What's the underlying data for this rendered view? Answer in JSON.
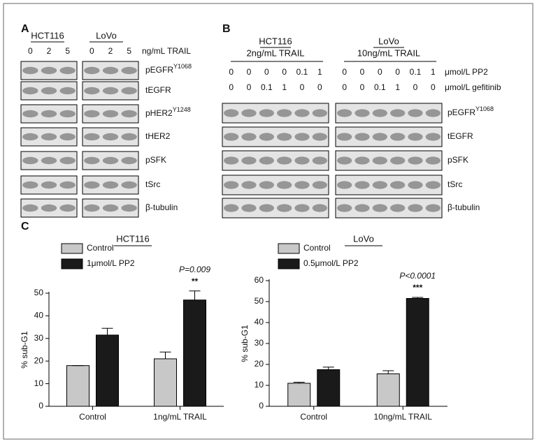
{
  "panel_a": {
    "label": "A",
    "groups": [
      "HCT116",
      "LoVo"
    ],
    "doses": [
      0,
      2,
      5
    ],
    "dose_unit": "ng/mL TRAIL",
    "blots": [
      {
        "name": "pEGFR",
        "sup": "Y1068"
      },
      {
        "name": "tEGFR"
      },
      {
        "name": "pHER2",
        "sup": "Y1248"
      },
      {
        "name": "tHER2"
      },
      {
        "name": "pSFK"
      },
      {
        "name": "tSrc"
      },
      {
        "name": "β-tubulin"
      }
    ]
  },
  "panel_b": {
    "label": "B",
    "groups": [
      {
        "name": "HCT116",
        "treatment": "2ng/mL TRAIL"
      },
      {
        "name": "LoVo",
        "treatment": "10ng/mL TRAIL"
      }
    ],
    "pp2": [
      0,
      0,
      0,
      0,
      0.1,
      1
    ],
    "pp2_unit": "μmol/L PP2",
    "gefitinib": [
      0,
      0,
      0.1,
      1,
      0,
      0
    ],
    "gefitinib_unit": "μmol/L gefitinib",
    "blots": [
      {
        "name": "pEGFR",
        "sup": "Y1068"
      },
      {
        "name": "tEGFR"
      },
      {
        "name": "pSFK"
      },
      {
        "name": "tSrc"
      },
      {
        "name": "β-tubulin"
      }
    ]
  },
  "panel_c": {
    "label": "C"
  },
  "chart_data": [
    {
      "type": "bar",
      "title": "HCT116",
      "y_label": "% sub-G1",
      "categories": [
        "Control",
        "1ng/mL TRAIL"
      ],
      "series": [
        {
          "name": "Control",
          "color": "#c8c8c8",
          "values": [
            18,
            21
          ],
          "errors": [
            0,
            3
          ]
        },
        {
          "name": "1μmol/L PP2",
          "color": "#1a1a1a",
          "values": [
            31.5,
            47
          ],
          "errors": [
            3,
            4
          ]
        }
      ],
      "ylim": [
        0,
        50
      ],
      "yticks": [
        0,
        10,
        20,
        30,
        40,
        50
      ],
      "annotation": "P=0.009",
      "significance": "**"
    },
    {
      "type": "bar",
      "title": "LoVo",
      "y_label": "% sub-G1",
      "categories": [
        "Control",
        "10ng/mL TRAIL"
      ],
      "series": [
        {
          "name": "Control",
          "color": "#c8c8c8",
          "values": [
            11,
            15.5
          ],
          "errors": [
            0.5,
            1.5
          ]
        },
        {
          "name": "0.5μmol/L PP2",
          "color": "#1a1a1a",
          "values": [
            17.5,
            51.5
          ],
          "errors": [
            1.2,
            0.5
          ]
        }
      ],
      "ylim": [
        0,
        60
      ],
      "yticks": [
        0,
        10,
        20,
        30,
        40,
        50,
        60
      ],
      "annotation": "P<0.0001",
      "significance": "***"
    }
  ]
}
